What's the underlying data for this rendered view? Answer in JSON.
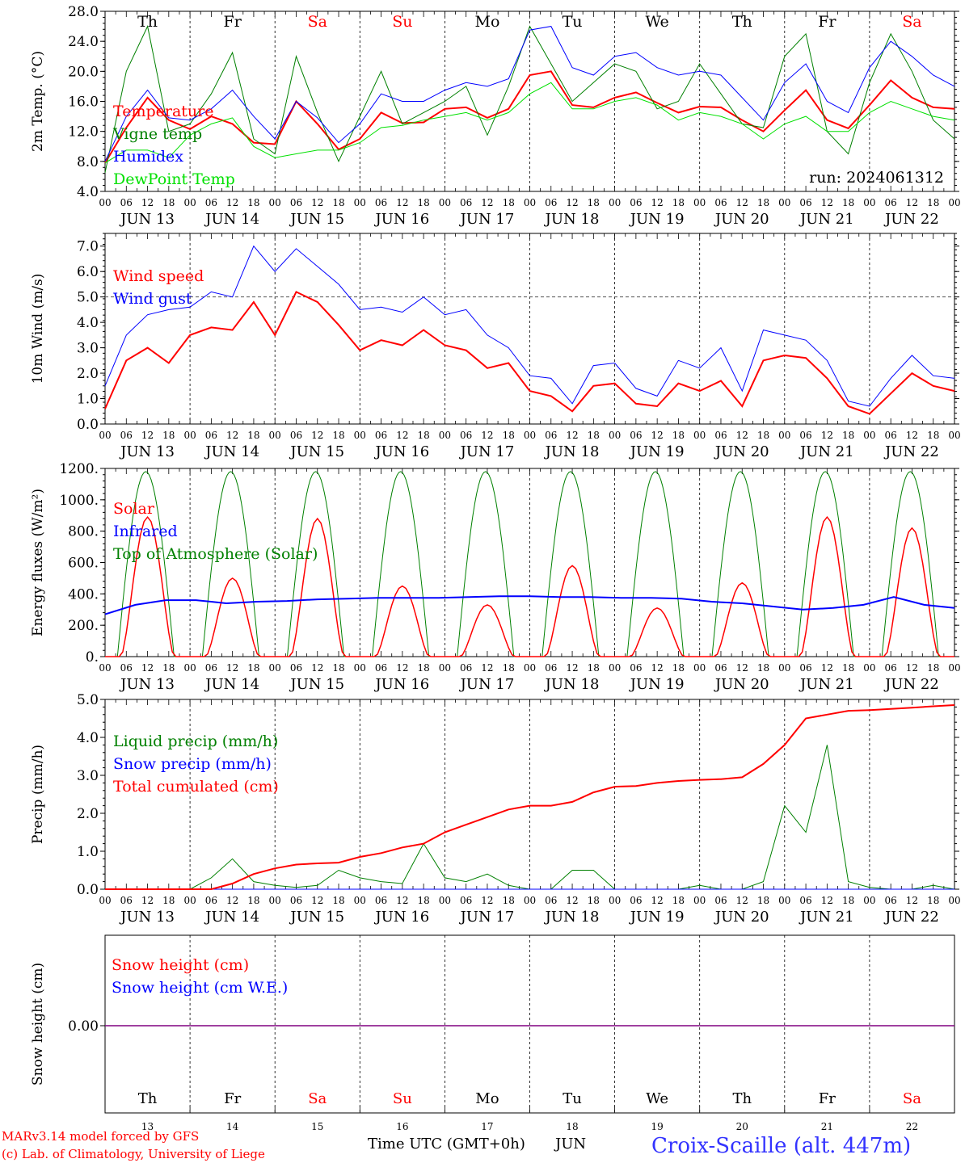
{
  "days": [
    "Th",
    "Fr",
    "Sa",
    "Su",
    "Mo",
    "Tu",
    "We",
    "Th",
    "Fr",
    "Sa"
  ],
  "weekend_days": [
    2,
    3,
    9
  ],
  "dates": [
    "JUN 13",
    "JUN 14",
    "JUN 15",
    "JUN 16",
    "JUN 17",
    "JUN 18",
    "JUN 19",
    "JUN 20",
    "JUN 21",
    "JUN 22"
  ],
  "day_numbers": [
    "13",
    "14",
    "15",
    "16",
    "17",
    "18",
    "19",
    "20",
    "21",
    "22"
  ],
  "hour_labels": [
    "00",
    "06",
    "12",
    "18"
  ],
  "final_hour_label": "00",
  "colors": {
    "red": "#ff0000",
    "green": "#008000",
    "blue": "#0000ff",
    "lightgreen": "#00e000",
    "purple": "#800080",
    "footer_blue": "#3333ff"
  },
  "footer": {
    "model": "MARv3.14 model forced by GFS",
    "copyright": "(c) Lab. of Climatology, University of Liege",
    "xaxis": "Time UTC (GMT+0h)",
    "month": "JUN",
    "station": "Croix-Scaille (alt. 447m)"
  },
  "chart_data": [
    {
      "type": "line",
      "ylabel": "2m Temp. (°C)",
      "ylim": [
        4,
        28
      ],
      "yticks": [
        "4.0",
        "8.0",
        "12.0",
        "16.0",
        "20.0",
        "24.0",
        "28.0"
      ],
      "annotation": "run: 2024061312",
      "x_hours": [
        0,
        6,
        12,
        18,
        24,
        30,
        36,
        42,
        48,
        54,
        60,
        66,
        72,
        78,
        84,
        90,
        96,
        102,
        108,
        114,
        120,
        126,
        132,
        138,
        144,
        150,
        156,
        162,
        168,
        174,
        180,
        186,
        192,
        198,
        204,
        210,
        216,
        222,
        228,
        234,
        240
      ],
      "series": [
        {
          "name": "Temperature",
          "color": "#ff0000",
          "values": [
            7.8,
            12.5,
            16.5,
            13.5,
            12.3,
            14.0,
            13.0,
            10.5,
            10.3,
            16.0,
            13.0,
            9.6,
            11.0,
            14.5,
            13.1,
            13.2,
            15.0,
            15.2,
            13.8,
            15.0,
            19.5,
            20.0,
            15.5,
            15.2,
            16.5,
            17.2,
            15.8,
            14.5,
            15.3,
            15.2,
            13.5,
            12.0,
            14.8,
            17.5,
            13.5,
            12.4,
            15.5,
            18.8,
            16.5,
            15.2,
            15.0
          ]
        },
        {
          "name": "Vigne temp",
          "color": "#008000",
          "values": [
            6.5,
            20.0,
            26.0,
            12.0,
            13.0,
            17.0,
            22.5,
            11.0,
            9.0,
            22.0,
            14.5,
            8.0,
            14.0,
            20.0,
            13.0,
            14.5,
            16.0,
            18.0,
            11.5,
            18.0,
            26.0,
            21.0,
            16.0,
            18.5,
            21.0,
            20.0,
            15.0,
            16.0,
            21.0,
            17.0,
            13.0,
            12.5,
            22.0,
            25.0,
            12.0,
            9.0,
            18.5,
            25.0,
            20.0,
            13.5,
            11.0
          ]
        },
        {
          "name": "Humidex",
          "color": "#0000ff",
          "values": [
            8.0,
            14.0,
            17.5,
            13.8,
            13.5,
            15.0,
            17.5,
            14.0,
            11.0,
            16.0,
            13.8,
            10.5,
            13.0,
            17.0,
            16.0,
            16.0,
            17.5,
            18.5,
            18.0,
            19.0,
            25.5,
            26.0,
            20.5,
            19.5,
            22.0,
            22.5,
            20.5,
            19.5,
            20.0,
            19.5,
            16.5,
            13.5,
            18.5,
            21.0,
            16.0,
            14.5,
            20.5,
            24.0,
            22.0,
            19.5,
            18.0
          ]
        },
        {
          "name": "DewPoint Temp",
          "color": "#00e000",
          "values": [
            7.8,
            9.5,
            9.5,
            8.5,
            11.5,
            13.0,
            13.8,
            10.0,
            8.5,
            9.0,
            9.5,
            9.5,
            10.5,
            12.5,
            12.8,
            13.5,
            14.0,
            14.5,
            13.5,
            14.5,
            17.0,
            18.5,
            15.0,
            15.0,
            16.0,
            16.5,
            15.5,
            13.5,
            14.5,
            14.0,
            13.0,
            11.0,
            13.0,
            14.0,
            12.0,
            12.0,
            14.5,
            16.0,
            15.0,
            14.0,
            13.5
          ]
        }
      ]
    },
    {
      "type": "line",
      "ylabel": "10m Wind (m/s)",
      "ylim": [
        0,
        7.5
      ],
      "yticks": [
        "0.0",
        "1.0",
        "2.0",
        "3.0",
        "4.0",
        "5.0",
        "6.0",
        "7.0"
      ],
      "reference_line": 5.0,
      "x_hours": [
        0,
        6,
        12,
        18,
        24,
        30,
        36,
        42,
        48,
        54,
        60,
        66,
        72,
        78,
        84,
        90,
        96,
        102,
        108,
        114,
        120,
        126,
        132,
        138,
        144,
        150,
        156,
        162,
        168,
        174,
        180,
        186,
        192,
        198,
        204,
        210,
        216,
        222,
        228,
        234,
        240
      ],
      "series": [
        {
          "name": "Wind speed",
          "color": "#ff0000",
          "values": [
            0.6,
            2.5,
            3.0,
            2.4,
            3.5,
            3.8,
            3.7,
            4.8,
            3.5,
            5.2,
            4.8,
            3.9,
            2.9,
            3.3,
            3.1,
            3.7,
            3.1,
            2.9,
            2.2,
            2.4,
            1.3,
            1.1,
            0.5,
            1.5,
            1.6,
            0.8,
            0.7,
            1.6,
            1.3,
            1.7,
            0.7,
            2.5,
            2.7,
            2.6,
            1.8,
            0.7,
            0.4,
            1.2,
            2.0,
            1.5,
            1.3
          ]
        },
        {
          "name": "Wind gust",
          "color": "#0000ff",
          "values": [
            1.5,
            3.5,
            4.3,
            4.5,
            4.6,
            5.2,
            5.0,
            7.0,
            6.0,
            6.9,
            6.2,
            5.5,
            4.5,
            4.6,
            4.4,
            5.0,
            4.3,
            4.5,
            3.5,
            3.0,
            1.9,
            1.8,
            0.8,
            2.3,
            2.4,
            1.4,
            1.1,
            2.5,
            2.2,
            3.0,
            1.3,
            3.7,
            3.5,
            3.3,
            2.5,
            0.9,
            0.7,
            1.8,
            2.7,
            1.9,
            1.8
          ]
        }
      ]
    },
    {
      "type": "line",
      "ylabel": "Energy fluxes (W/m²)",
      "ylim": [
        0,
        1200
      ],
      "yticks": [
        "0.",
        "200.",
        "400.",
        "600.",
        "800.",
        "1000.",
        "1200."
      ],
      "series": [
        {
          "name": "Solar",
          "color": "#ff0000",
          "peaks": [
            890,
            500,
            880,
            450,
            330,
            580,
            310,
            470,
            890,
            820
          ],
          "hourly_shape": "daytime"
        },
        {
          "name": "Infrared",
          "color": "#0000ff",
          "values": [
            270,
            330,
            360,
            360,
            340,
            350,
            355,
            365,
            370,
            375,
            375,
            375,
            380,
            385,
            385,
            380,
            380,
            375,
            375,
            370,
            350,
            340,
            320,
            300,
            310,
            330,
            380,
            330,
            310
          ]
        },
        {
          "name": "Top of Atmosphere (Solar)",
          "color": "#008000",
          "daily_peak": 1180,
          "sunrise_h": 3.5,
          "sunset_h": 19.5
        }
      ]
    },
    {
      "type": "line",
      "ylabel": "Precip (mm/h)",
      "ylim": [
        0,
        5
      ],
      "yticks": [
        "0.0",
        "1.0",
        "2.0",
        "3.0",
        "4.0",
        "5.0"
      ],
      "x_hours": [
        0,
        6,
        12,
        18,
        24,
        30,
        36,
        42,
        48,
        54,
        60,
        66,
        72,
        78,
        84,
        90,
        96,
        102,
        108,
        114,
        120,
        126,
        132,
        138,
        144,
        150,
        156,
        162,
        168,
        174,
        180,
        186,
        192,
        198,
        204,
        210,
        216,
        222,
        228,
        234,
        240
      ],
      "series": [
        {
          "name": "Liquid precip (mm/h)",
          "color": "#008000",
          "values": [
            0,
            0,
            0,
            0,
            0,
            0.3,
            0.8,
            0.2,
            0.1,
            0.05,
            0.1,
            0.5,
            0.3,
            0.2,
            0.15,
            1.2,
            0.3,
            0.2,
            0.4,
            0.1,
            0,
            0,
            0.5,
            0.5,
            0,
            0,
            0,
            0,
            0.1,
            0,
            0,
            0.2,
            2.2,
            1.5,
            3.8,
            0.2,
            0.05,
            0,
            0,
            0.1,
            0
          ]
        },
        {
          "name": "Snow precip (mm/h)",
          "color": "#0000ff",
          "values": [
            0,
            0,
            0,
            0,
            0,
            0,
            0,
            0,
            0,
            0,
            0,
            0,
            0,
            0,
            0,
            0,
            0,
            0,
            0,
            0,
            0,
            0,
            0,
            0,
            0,
            0,
            0,
            0,
            0,
            0,
            0,
            0,
            0,
            0,
            0,
            0,
            0,
            0,
            0,
            0,
            0
          ]
        },
        {
          "name": "Total cumulated (cm)",
          "color": "#ff0000",
          "values": [
            0,
            0,
            0,
            0,
            0,
            0,
            0.15,
            0.4,
            0.55,
            0.65,
            0.68,
            0.7,
            0.85,
            0.95,
            1.1,
            1.2,
            1.5,
            1.7,
            1.9,
            2.1,
            2.2,
            2.2,
            2.3,
            2.55,
            2.7,
            2.72,
            2.8,
            2.85,
            2.88,
            2.9,
            2.95,
            3.3,
            3.8,
            4.5,
            4.6,
            4.7,
            4.72,
            4.75,
            4.78,
            4.82,
            4.85
          ]
        }
      ]
    },
    {
      "type": "line",
      "ylabel": "Snow height (cm)",
      "yticks": [
        "0.00"
      ],
      "series": [
        {
          "name": "Snow height (cm)",
          "color": "#ff0000",
          "values": [
            0,
            0
          ]
        },
        {
          "name": "Snow height (cm W.E.)",
          "color": "#0000ff",
          "values": [
            0,
            0
          ]
        }
      ]
    }
  ]
}
